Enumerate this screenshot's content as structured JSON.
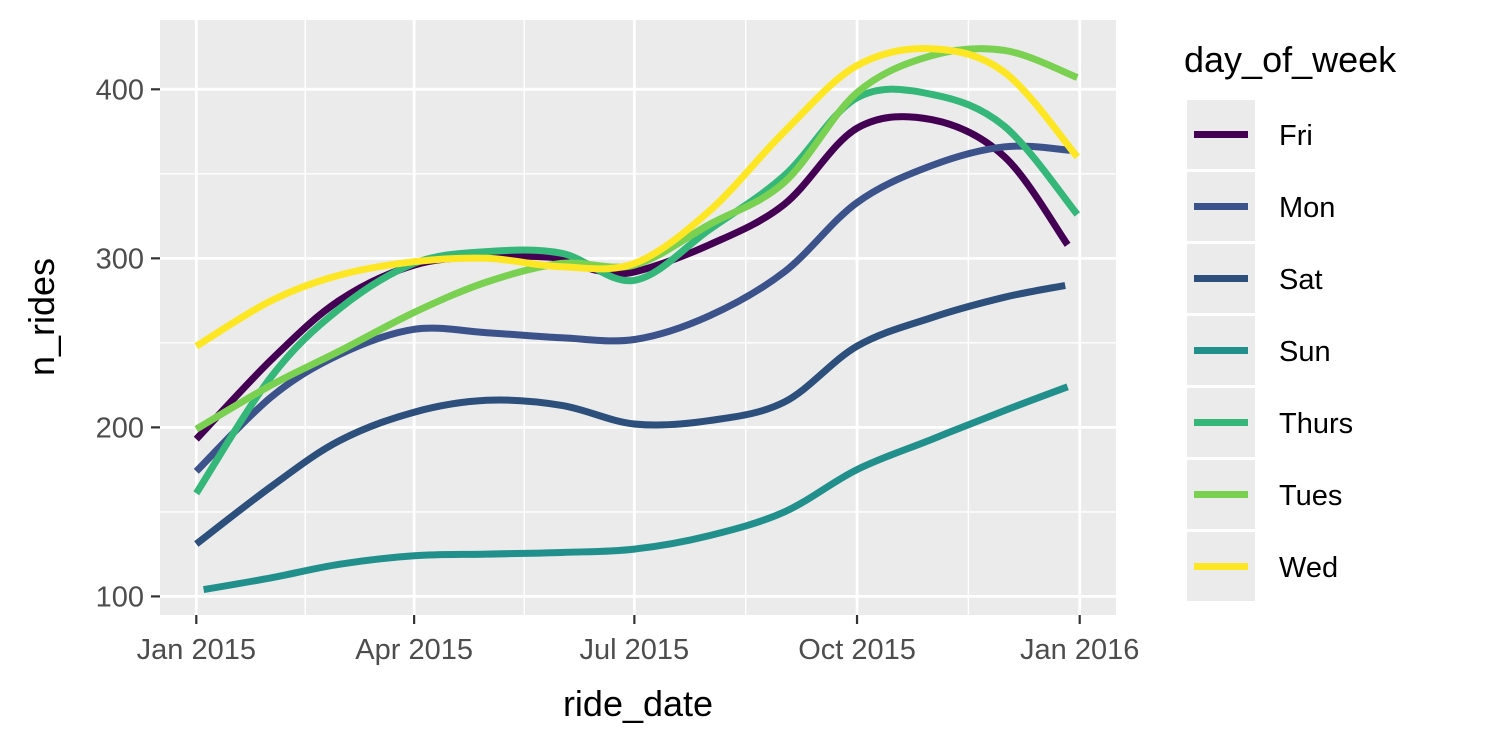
{
  "chart_data": {
    "type": "line",
    "xlabel": "ride_date",
    "ylabel": "n_rides",
    "x_ticks": [
      "Jan 2015",
      "Apr 2015",
      "Jul 2015",
      "Oct 2015",
      "Jan 2016"
    ],
    "y_ticks": [
      "100",
      "200",
      "300",
      "400"
    ],
    "xlim": [
      "2014-12-17",
      "2016-01-16"
    ],
    "ylim": [
      89,
      441
    ],
    "grid": true,
    "legend_title": "day_of_week",
    "legend_position": "right",
    "series": [
      {
        "name": "Fri",
        "color": "#440154",
        "x": [
          "2015-01-01",
          "2015-02-01",
          "2015-03-01",
          "2015-04-01",
          "2015-05-01",
          "2015-06-01",
          "2015-06-15",
          "2015-07-01",
          "2015-08-01",
          "2015-09-01",
          "2015-10-01",
          "2015-11-01",
          "2015-12-01",
          "2015-12-27"
        ],
        "y": [
          193,
          240,
          275,
          296,
          301,
          300,
          293,
          292,
          308,
          332,
          377,
          382,
          360,
          308
        ]
      },
      {
        "name": "Mon",
        "color": "#3B528B",
        "x": [
          "2015-01-01",
          "2015-02-01",
          "2015-03-01",
          "2015-04-01",
          "2015-05-01",
          "2015-06-01",
          "2015-07-01",
          "2015-08-01",
          "2015-09-01",
          "2015-10-01",
          "2015-11-01",
          "2015-12-01",
          "2015-12-28"
        ],
        "y": [
          174,
          218,
          243,
          258,
          256,
          253,
          252,
          266,
          292,
          333,
          355,
          366,
          364
        ]
      },
      {
        "name": "Sat",
        "color": "#2C4F7B",
        "x": [
          "2015-01-01",
          "2015-02-01",
          "2015-03-01",
          "2015-04-01",
          "2015-05-01",
          "2015-06-01",
          "2015-07-01",
          "2015-08-01",
          "2015-09-01",
          "2015-10-01",
          "2015-11-01",
          "2015-12-01",
          "2015-12-26"
        ],
        "y": [
          131,
          165,
          192,
          209,
          216,
          213,
          202,
          204,
          215,
          248,
          265,
          277,
          284
        ]
      },
      {
        "name": "Sun",
        "color": "#21908C",
        "x": [
          "2015-01-04",
          "2015-02-01",
          "2015-03-01",
          "2015-04-01",
          "2015-05-01",
          "2015-06-01",
          "2015-07-01",
          "2015-08-01",
          "2015-09-01",
          "2015-10-01",
          "2015-11-01",
          "2015-12-01",
          "2015-12-27"
        ],
        "y": [
          104,
          111,
          119,
          124,
          125,
          126,
          128,
          136,
          150,
          175,
          193,
          210,
          224
        ]
      },
      {
        "name": "Thurs",
        "color": "#35B779",
        "x": [
          "2015-01-01",
          "2015-02-01",
          "2015-03-01",
          "2015-04-01",
          "2015-05-01",
          "2015-06-01",
          "2015-07-01",
          "2015-08-01",
          "2015-09-01",
          "2015-10-01",
          "2015-11-01",
          "2015-12-01",
          "2015-12-31"
        ],
        "y": [
          161,
          230,
          270,
          297,
          304,
          303,
          287,
          317,
          349,
          395,
          397,
          378,
          326
        ]
      },
      {
        "name": "Tues",
        "color": "#7AD151",
        "x": [
          "2015-01-01",
          "2015-02-01",
          "2015-03-01",
          "2015-04-01",
          "2015-05-01",
          "2015-06-01",
          "2015-07-01",
          "2015-08-01",
          "2015-09-01",
          "2015-10-01",
          "2015-11-01",
          "2015-12-01",
          "2015-12-31"
        ],
        "y": [
          199,
          225,
          245,
          268,
          286,
          297,
          296,
          320,
          345,
          398,
          420,
          423,
          407
        ]
      },
      {
        "name": "Wed",
        "color": "#FDE725",
        "x": [
          "2015-01-01",
          "2015-02-01",
          "2015-03-01",
          "2015-04-01",
          "2015-05-01",
          "2015-06-01",
          "2015-07-01",
          "2015-08-01",
          "2015-09-01",
          "2015-10-01",
          "2015-11-01",
          "2015-12-01",
          "2015-12-31"
        ],
        "y": [
          248,
          275,
          290,
          298,
          300,
          295,
          297,
          328,
          375,
          414,
          424,
          410,
          360
        ]
      }
    ]
  }
}
